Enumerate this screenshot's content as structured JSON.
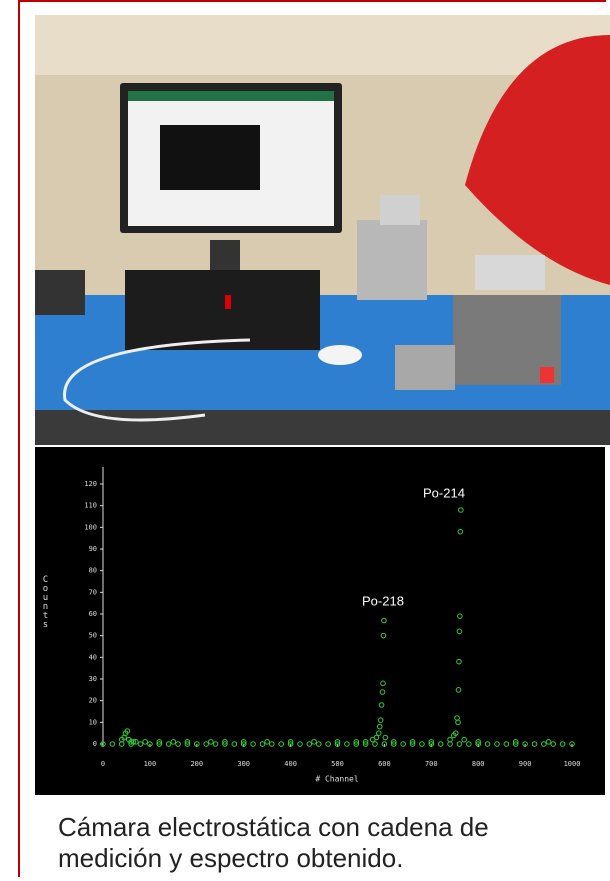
{
  "chart_data": {
    "type": "scatter",
    "x_label": "# Channel",
    "y_label": "Counts",
    "annotations": [
      "Po-218",
      "Po-214"
    ],
    "xlim": [
      0,
      1000
    ],
    "xticks": [
      0,
      100,
      200,
      300,
      400,
      500,
      600,
      700,
      800,
      900,
      1000
    ],
    "ylim": [
      0,
      120
    ],
    "yticks": [
      0,
      10,
      20,
      30,
      40,
      50,
      60,
      70,
      80,
      90,
      100,
      110,
      120
    ],
    "color": "#33cc33",
    "series": [
      {
        "x": [
          40,
          45,
          48,
          52,
          55,
          60,
          65,
          70,
          90,
          120,
          150,
          180,
          230,
          260,
          300,
          350,
          400,
          450,
          500,
          540,
          560,
          575,
          583,
          588,
          590,
          592,
          594,
          596,
          597,
          598,
          599,
          602,
          620,
          660,
          700,
          740,
          748,
          752,
          755,
          757,
          758,
          759,
          760,
          761,
          762,
          763,
          770,
          800,
          880,
          950
        ],
        "values": [
          2,
          3,
          5,
          6,
          2,
          1,
          1,
          1,
          1,
          1,
          1,
          1,
          1,
          1,
          1,
          1,
          1,
          1,
          1,
          1,
          1,
          2,
          3,
          5,
          8,
          11,
          18,
          24,
          28,
          50,
          57,
          3,
          1,
          1,
          1,
          2,
          4,
          5,
          12,
          10,
          25,
          38,
          52,
          59,
          98,
          108,
          2,
          1,
          1,
          1
        ]
      },
      {
        "x": [
          0,
          20,
          40,
          60,
          80,
          100,
          120,
          140,
          160,
          180,
          200,
          220,
          240,
          260,
          280,
          300,
          320,
          340,
          360,
          380,
          400,
          420,
          440,
          460,
          480,
          500,
          520,
          540,
          560,
          580,
          600,
          620,
          640,
          660,
          680,
          700,
          720,
          740,
          760,
          780,
          800,
          820,
          840,
          860,
          880,
          900,
          920,
          940,
          960,
          980,
          1000
        ],
        "values": [
          0,
          0,
          0,
          0,
          0,
          0,
          0,
          0,
          0,
          0,
          0,
          0,
          0,
          0,
          0,
          0,
          0,
          0,
          0,
          0,
          0,
          0,
          0,
          0,
          0,
          0,
          0,
          0,
          0,
          0,
          0,
          0,
          0,
          0,
          0,
          0,
          0,
          0,
          0,
          0,
          0,
          0,
          0,
          0,
          0,
          0,
          0,
          0,
          0,
          0,
          0
        ]
      }
    ]
  },
  "caption": "Cámara electrostática con cadena de medición y espectro obtenido."
}
